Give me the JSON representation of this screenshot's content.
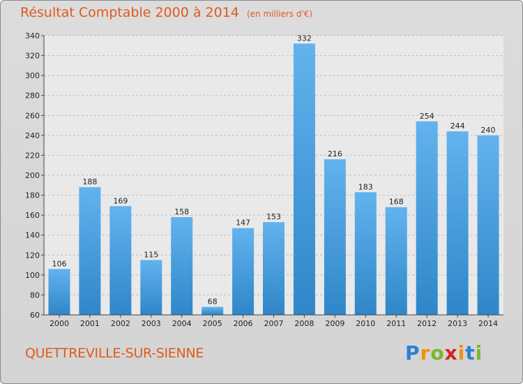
{
  "chart_data": {
    "type": "bar",
    "title": "Résultat Comptable 2000 à 2014",
    "unit_note": "(en milliers d'€)",
    "categories": [
      "2000",
      "2001",
      "2002",
      "2003",
      "2004",
      "2005",
      "2006",
      "2007",
      "2008",
      "2009",
      "2010",
      "2011",
      "2012",
      "2013",
      "2014"
    ],
    "values": [
      106,
      188,
      169,
      115,
      158,
      68,
      147,
      153,
      332,
      216,
      183,
      168,
      254,
      244,
      240
    ],
    "ylim": [
      60,
      340
    ],
    "yticks": [
      60,
      80,
      100,
      120,
      140,
      160,
      180,
      200,
      220,
      240,
      260,
      280,
      300,
      320,
      340
    ],
    "grid": true,
    "xlabel": "",
    "ylabel": ""
  },
  "commune": "QUETTREVILLE-SUR-SIENNE",
  "logo": {
    "letters": [
      "P",
      "r",
      "o",
      "x",
      "i",
      "t",
      "i"
    ],
    "colors": [
      "#2b7fd6",
      "#f39200",
      "#7ab828",
      "#d8211c",
      "#f39200",
      "#2b7fd6",
      "#7ab828"
    ]
  },
  "colors": {
    "bar_light": "#62b3ee",
    "bar_dark": "#2f86c8",
    "title": "#e05a1e",
    "plot_bg": "#e9e9e9",
    "grid": "#bdbdbd"
  }
}
